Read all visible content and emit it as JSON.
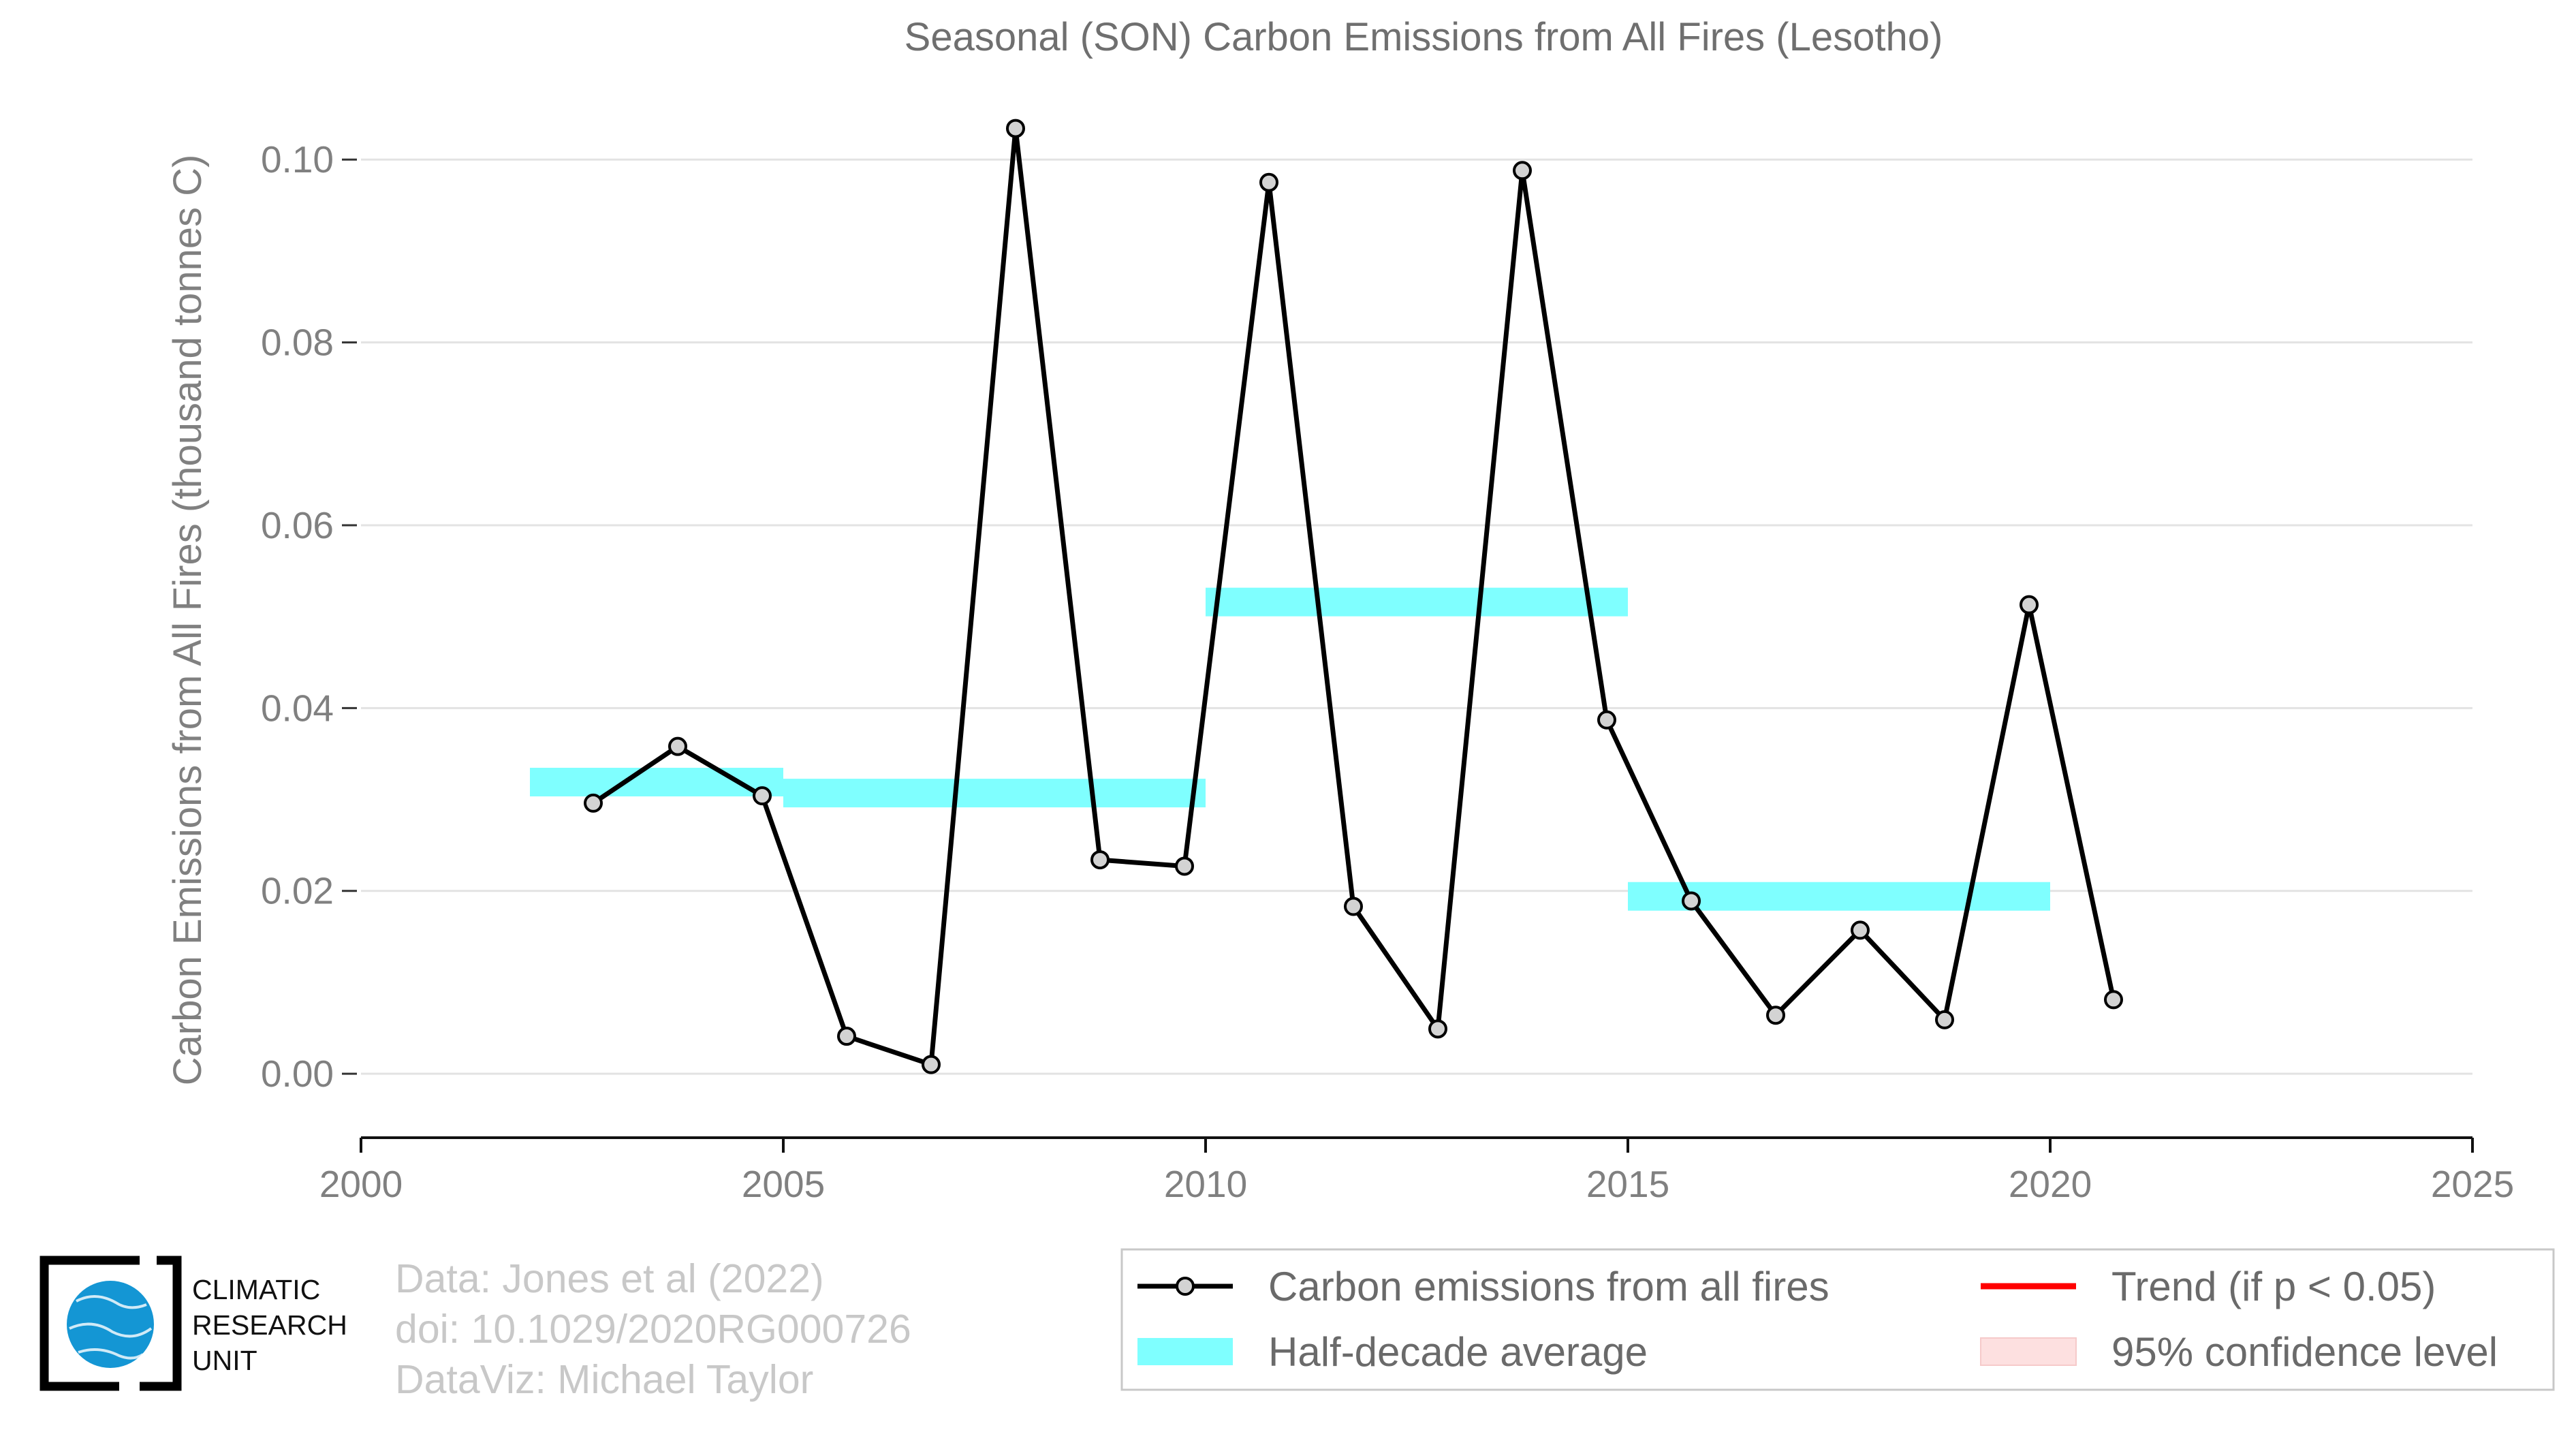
{
  "chart_data": {
    "type": "line",
    "title": "Seasonal (SON) Carbon Emissions from All Fires (Lesotho)",
    "ylabel": "Carbon Emissions from All Fires (thousand tonnes C)",
    "xlabel": "",
    "xlim": [
      2000,
      2025
    ],
    "ylim": [
      -0.007,
      0.11
    ],
    "xticks": [
      2000,
      2005,
      2010,
      2015,
      2020,
      2025
    ],
    "yticks": [
      "0.00",
      "0.02",
      "0.04",
      "0.06",
      "0.08",
      "0.10"
    ],
    "grid": "horizontal",
    "series": [
      {
        "name": "Carbon emissions from all fires",
        "color": "#000000",
        "marker_fill": "#d3d3d3",
        "x": [
          2002.75,
          2003.75,
          2004.75,
          2005.75,
          2006.75,
          2007.75,
          2008.75,
          2009.75,
          2010.75,
          2011.75,
          2012.75,
          2013.75,
          2014.75,
          2015.75,
          2016.75,
          2017.75,
          2018.75,
          2019.75,
          2020.75
        ],
        "values": [
          0.0296,
          0.0358,
          0.0304,
          0.0041,
          0.001,
          0.1034,
          0.0234,
          0.0227,
          0.0975,
          0.0183,
          0.0049,
          0.0988,
          0.0387,
          0.0189,
          0.0064,
          0.0157,
          0.0059,
          0.0513,
          0.0081
        ]
      }
    ],
    "half_decade_averages": {
      "name": "Half-decade average",
      "color": "#7fffff",
      "segments": [
        {
          "x_start": 2002,
          "x_end": 2005,
          "value": 0.0319
        },
        {
          "x_start": 2005,
          "x_end": 2010,
          "value": 0.0307
        },
        {
          "x_start": 2010,
          "x_end": 2015,
          "value": 0.0516
        },
        {
          "x_start": 2015,
          "x_end": 2020,
          "value": 0.0194
        }
      ]
    },
    "legend": {
      "placement": "bottom-right",
      "entries": [
        {
          "label": "Carbon emissions from all fires",
          "kind": "line-marker",
          "color": "#000000"
        },
        {
          "label": "Trend (if p < 0.05)",
          "kind": "line",
          "color": "#ff0000"
        },
        {
          "label": "Half-decade average",
          "kind": "band",
          "color": "#7fffff"
        },
        {
          "label": "95% confidence level",
          "kind": "band",
          "color": "#fde0e0"
        }
      ]
    }
  },
  "credits": {
    "line1": "Data: Jones et al (2022)",
    "line2": "doi: 10.1029/2020RG000726",
    "line3": "DataViz: Michael Taylor"
  },
  "logo": {
    "line1": "CLIMATIC",
    "line2": "RESEARCH",
    "line3": "UNIT"
  }
}
